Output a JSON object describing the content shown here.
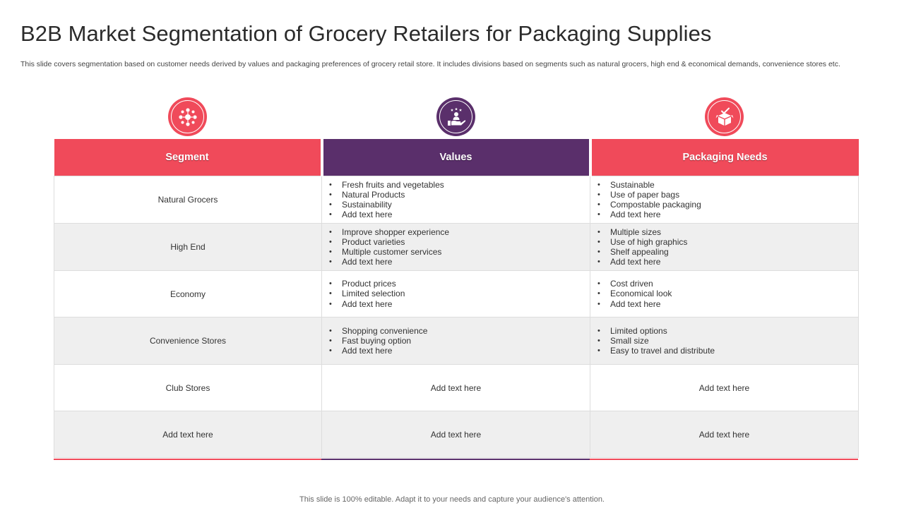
{
  "title": "B2B Market Segmentation of Grocery Retailers for Packaging Supplies",
  "subtitle": "This slide covers segmentation based on customer needs derived by values and packaging preferences of grocery retail store. It includes divisions based on segments such as natural grocers, high end & economical demands, convenience stores etc.",
  "colors": {
    "accent_red": "#f04a5a",
    "accent_purple": "#5a2f6b",
    "row_grey": "#efefef"
  },
  "icons": [
    "people-network-icon",
    "hand-with-person-icon",
    "box-checkmark-icon"
  ],
  "table": {
    "headers": [
      "Segment",
      "Values",
      "Packaging Needs"
    ],
    "rows": [
      {
        "segment": "Natural Grocers",
        "values": [
          "Fresh fruits and vegetables",
          "Natural Products",
          "Sustainability",
          "Add text here"
        ],
        "packaging": [
          "Sustainable",
          "Use of paper bags",
          "Compostable packaging",
          "Add text here"
        ]
      },
      {
        "segment": "High End",
        "values": [
          "Improve shopper experience",
          "Product varieties",
          "Multiple customer services",
          "Add text here"
        ],
        "packaging": [
          "Multiple sizes",
          "Use of high graphics",
          "Shelf appealing",
          "Add text here"
        ]
      },
      {
        "segment": "Economy",
        "values": [
          "Product prices",
          "Limited selection",
          "Add text here"
        ],
        "packaging": [
          "Cost driven",
          "Economical look",
          "Add text here"
        ]
      },
      {
        "segment": "Convenience Stores",
        "values": [
          "Shopping convenience",
          "Fast buying option",
          "Add text here"
        ],
        "packaging": [
          "Limited options",
          "Small size",
          "Easy to travel and distribute"
        ]
      },
      {
        "segment": "Club Stores",
        "values_text": "Add text here",
        "packaging_text": "Add text here"
      },
      {
        "segment": "Add text here",
        "values_text": "Add text here",
        "packaging_text": "Add text here"
      }
    ]
  },
  "footer": "This slide is 100% editable. Adapt it to your needs and capture your audience's attention."
}
